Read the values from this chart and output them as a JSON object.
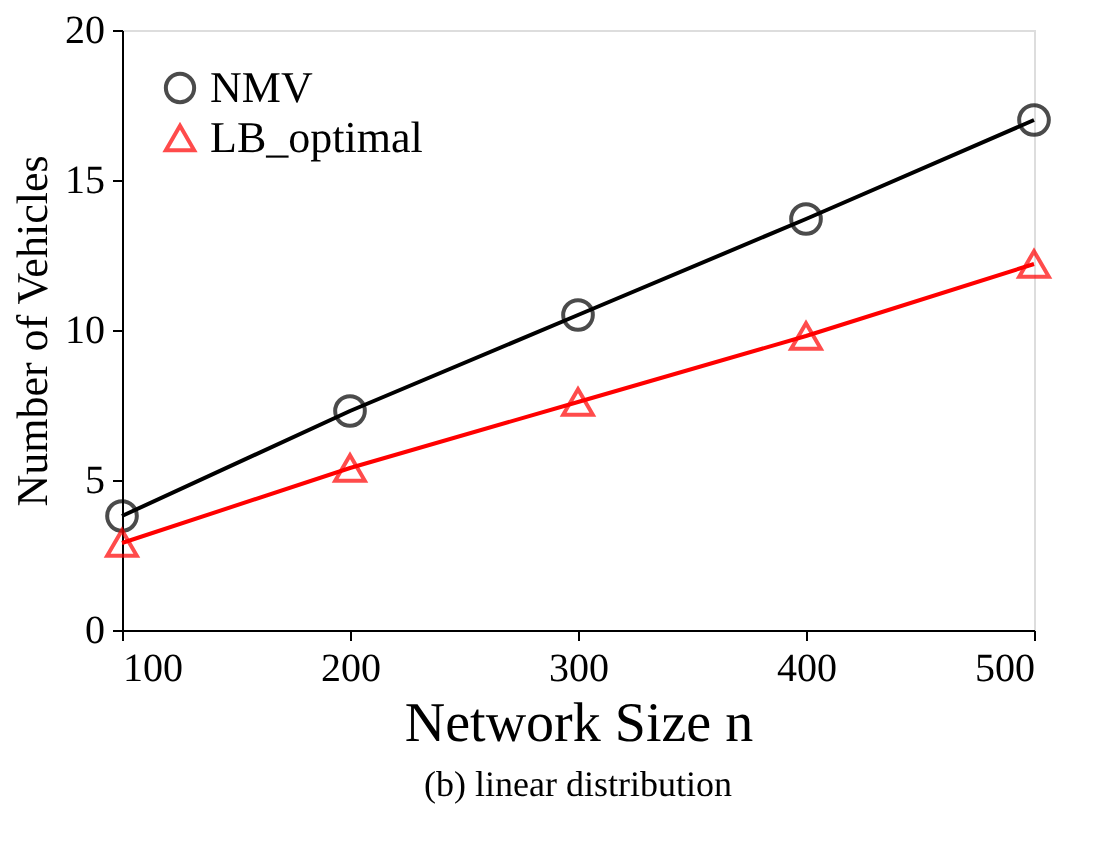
{
  "chart_data": {
    "type": "line",
    "xlabel": "Network Size n",
    "ylabel": "Number of Vehicles",
    "x": [
      100,
      200,
      300,
      400,
      500
    ],
    "series": [
      {
        "name": "NMV",
        "color": "#000000",
        "marker": "circle",
        "values": [
          3.8,
          7.3,
          10.5,
          13.7,
          17.0
        ]
      },
      {
        "name": "LB_optimal",
        "color": "#ff0000",
        "marker": "triangle",
        "values": [
          2.9,
          5.4,
          7.6,
          9.8,
          12.2
        ]
      }
    ],
    "xlim": [
      100,
      500
    ],
    "xticks": [
      100,
      200,
      300,
      400,
      500
    ],
    "ylim": [
      0,
      20
    ],
    "yticks": [
      0,
      5,
      10,
      15,
      20
    ],
    "grid": false,
    "legend": "top left",
    "line_style": "solid",
    "annotations": [
      "(b) linear distribution"
    ]
  }
}
